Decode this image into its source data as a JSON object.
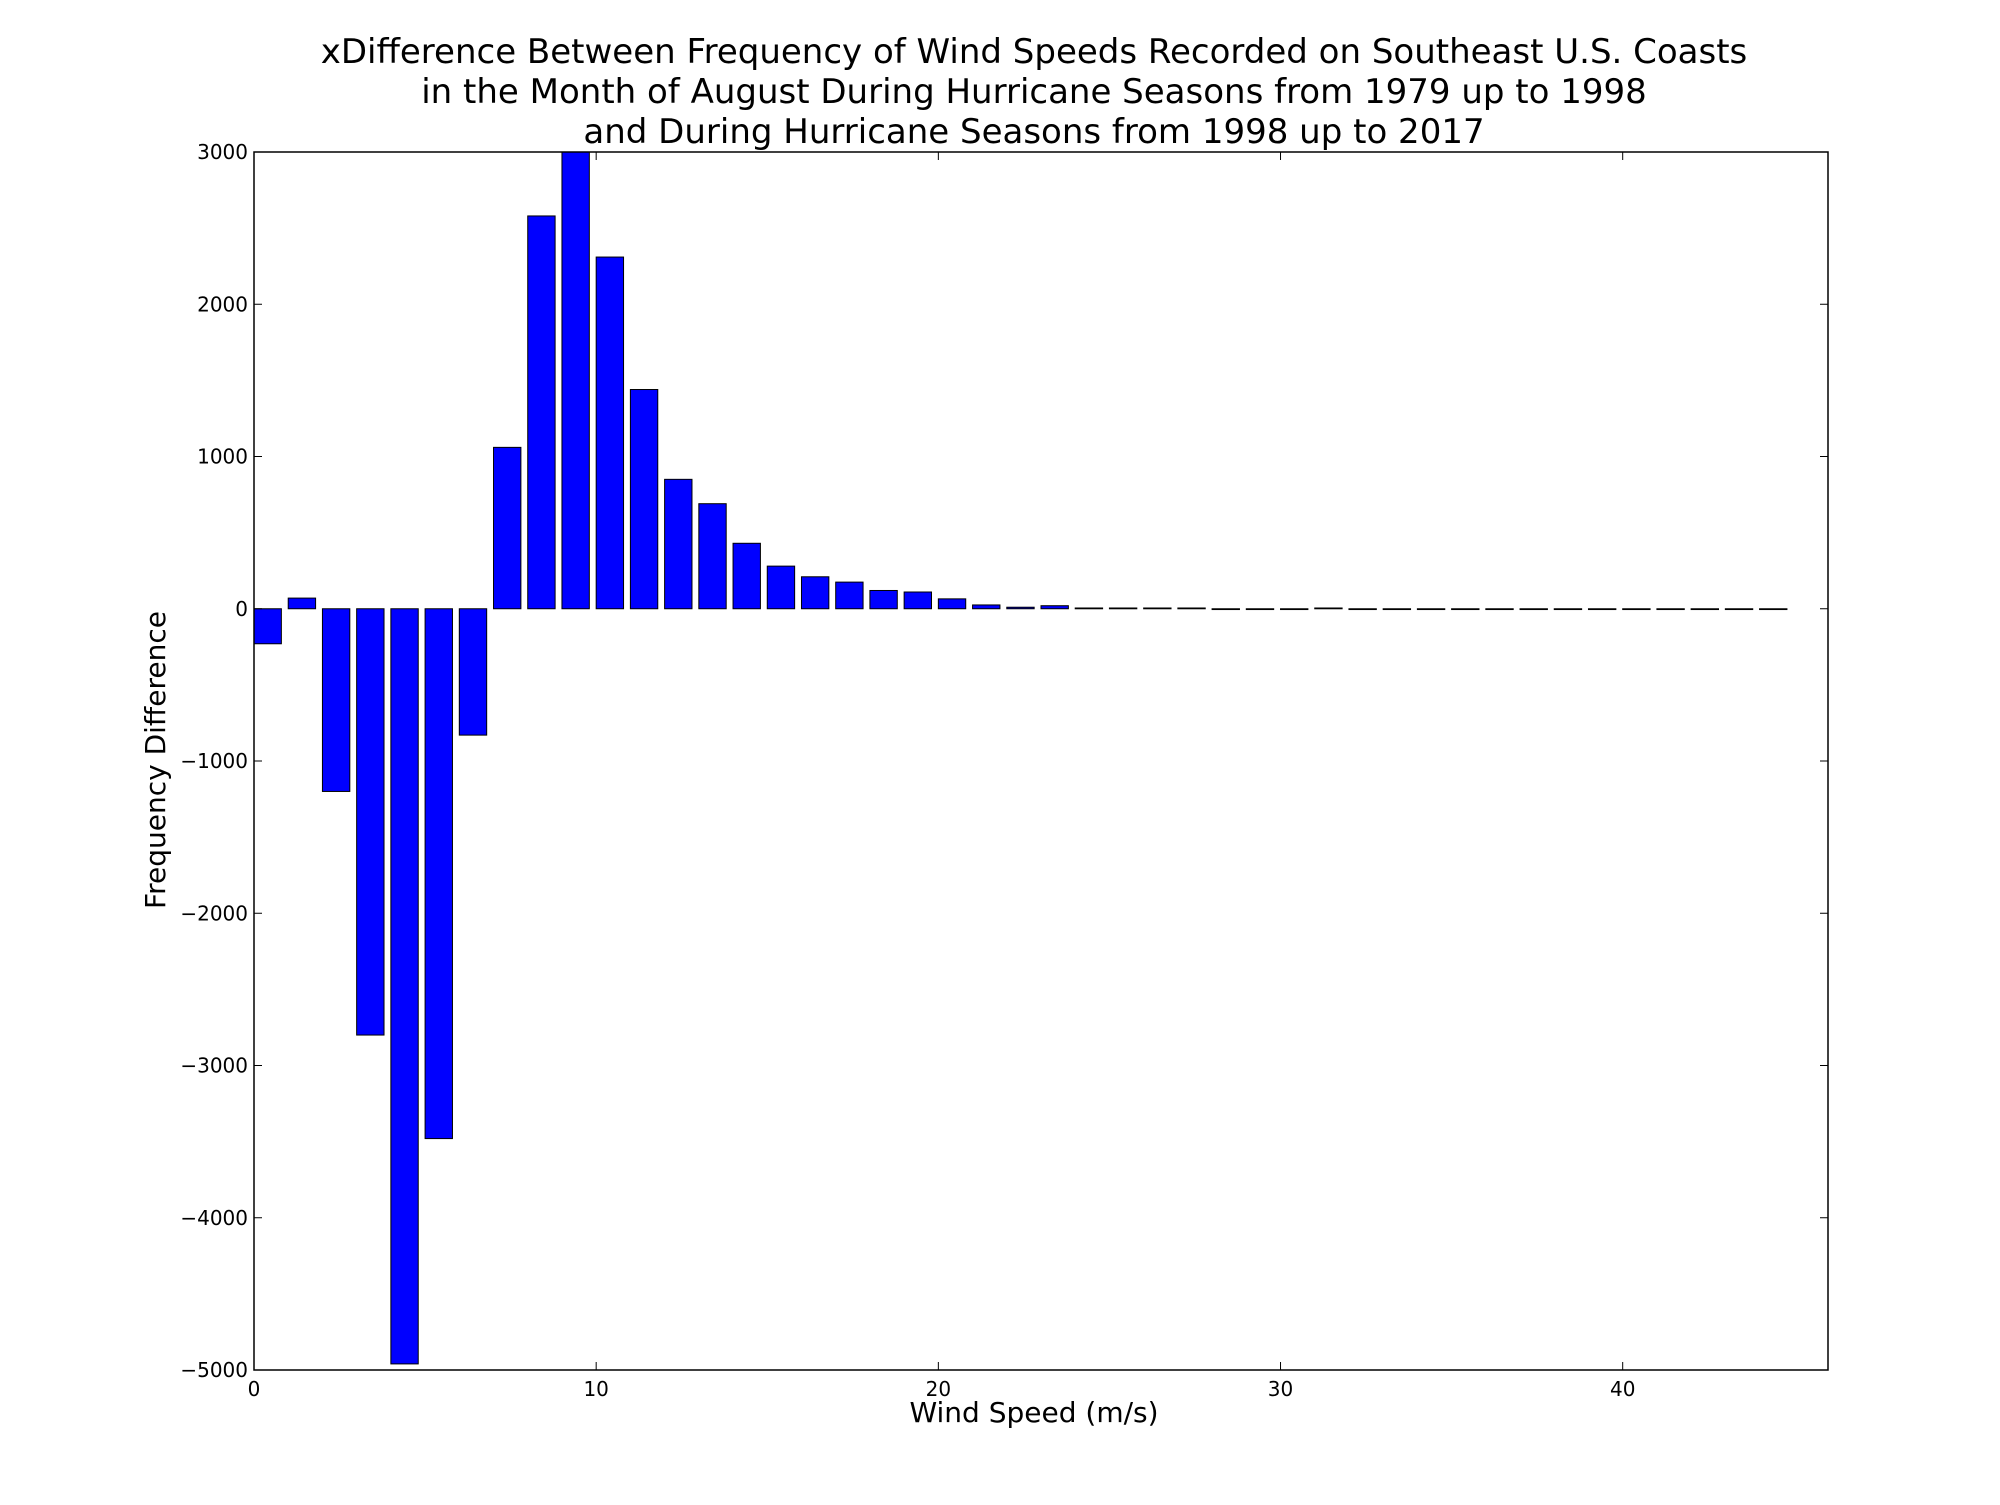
{
  "chart_data": {
    "type": "bar",
    "title_lines": [
      "xDifference Between Frequency of Wind Speeds Recorded on Southeast U.S. Coasts",
      "in the Month of August During Hurricane Seasons from 1979 up to 1998",
      "and During Hurricane Seasons from 1998 up to 2017"
    ],
    "xlabel": "Wind Speed (m/s)",
    "ylabel": "Frequency Difference",
    "xlim": [
      0,
      46
    ],
    "ylim": [
      -5000,
      3000
    ],
    "xticks": [
      0,
      10,
      20,
      30,
      40
    ],
    "yticks": [
      -5000,
      -4000,
      -3000,
      -2000,
      -1000,
      0,
      1000,
      2000,
      3000
    ],
    "xtick_labels": [
      "0",
      "10",
      "20",
      "30",
      "40"
    ],
    "ytick_labels": [
      "−5000",
      "−4000",
      "−3000",
      "−2000",
      "−1000",
      "0",
      "1000",
      "2000",
      "3000"
    ],
    "bar_width": 0.8,
    "x": [
      0,
      1,
      2,
      3,
      4,
      5,
      6,
      7,
      8,
      9,
      10,
      11,
      12,
      13,
      14,
      15,
      16,
      17,
      18,
      19,
      20,
      21,
      22,
      23,
      24,
      25,
      26,
      27,
      28,
      29,
      30,
      31,
      32,
      33,
      34,
      35,
      36,
      37,
      38,
      39,
      40,
      41,
      42,
      43,
      44
    ],
    "values": [
      -230,
      70,
      -1200,
      -2800,
      -4960,
      -3480,
      -830,
      1060,
      2580,
      3000,
      2310,
      1440,
      850,
      690,
      430,
      280,
      210,
      175,
      120,
      110,
      65,
      25,
      10,
      20,
      5,
      5,
      5,
      5,
      0,
      0,
      0,
      5,
      0,
      0,
      0,
      0,
      0,
      0,
      0,
      0,
      0,
      0,
      0,
      0,
      0
    ],
    "bar_color": "#0000ff",
    "grid": false,
    "legend": false
  }
}
